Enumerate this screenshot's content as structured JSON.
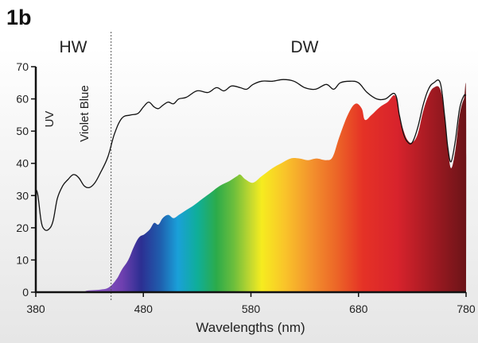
{
  "panel_label": "1b",
  "regions": [
    {
      "key": "hw",
      "label": "HW"
    },
    {
      "key": "dw",
      "label": "DW"
    }
  ],
  "bands": [
    {
      "key": "uv",
      "label": "UV"
    },
    {
      "key": "violet-blue",
      "label": "Violet Blue"
    }
  ],
  "chart_data": {
    "type": "area",
    "title": "",
    "xlabel": "Wavelengths (nm)",
    "ylabel": "",
    "xlim": [
      380,
      780
    ],
    "ylim": [
      0,
      70
    ],
    "x_ticks": [
      380,
      480,
      580,
      680,
      780
    ],
    "y_ticks": [
      0,
      10,
      20,
      30,
      40,
      50,
      60,
      70
    ],
    "divider_x": 450,
    "grid": false,
    "legend": "none",
    "series": [
      {
        "style": "spectral-fill",
        "points": [
          [
            380,
            0
          ],
          [
            420,
            0
          ],
          [
            428,
            0.5
          ],
          [
            440,
            0.8
          ],
          [
            448,
            1.5
          ],
          [
            455,
            4
          ],
          [
            460,
            7
          ],
          [
            466,
            10
          ],
          [
            471,
            14
          ],
          [
            476,
            17
          ],
          [
            481,
            18
          ],
          [
            486,
            19.5
          ],
          [
            490,
            21.5
          ],
          [
            494,
            21
          ],
          [
            498,
            23
          ],
          [
            503,
            24
          ],
          [
            508,
            23
          ],
          [
            513,
            24
          ],
          [
            520,
            25.5
          ],
          [
            527,
            27
          ],
          [
            535,
            29
          ],
          [
            543,
            31
          ],
          [
            551,
            33
          ],
          [
            560,
            34.5
          ],
          [
            567,
            36
          ],
          [
            570,
            36.5
          ],
          [
            575,
            35
          ],
          [
            582,
            34
          ],
          [
            590,
            36
          ],
          [
            600,
            38.5
          ],
          [
            608,
            40
          ],
          [
            617,
            41.5
          ],
          [
            625,
            41.5
          ],
          [
            633,
            41
          ],
          [
            641,
            41.5
          ],
          [
            650,
            41
          ],
          [
            656,
            42
          ],
          [
            662,
            48
          ],
          [
            670,
            55
          ],
          [
            677,
            58.5
          ],
          [
            683,
            57
          ],
          [
            686,
            53.5
          ],
          [
            692,
            55
          ],
          [
            700,
            57.5
          ],
          [
            707,
            59
          ],
          [
            714,
            61
          ],
          [
            718,
            55
          ],
          [
            722,
            50
          ],
          [
            726,
            47
          ],
          [
            730,
            46.5
          ],
          [
            735,
            49
          ],
          [
            740,
            56
          ],
          [
            745,
            61
          ],
          [
            750,
            63.5
          ],
          [
            756,
            63
          ],
          [
            760,
            55
          ],
          [
            763,
            45
          ],
          [
            766,
            38.5
          ],
          [
            770,
            44
          ],
          [
            774,
            55
          ],
          [
            778,
            60
          ],
          [
            780,
            60
          ],
          [
            780,
            0
          ]
        ]
      },
      {
        "style": "envelope-line",
        "color": "#111111",
        "points": [
          [
            380,
            32
          ],
          [
            382,
            30
          ],
          [
            385,
            22
          ],
          [
            388,
            19.5
          ],
          [
            392,
            19.5
          ],
          [
            396,
            22
          ],
          [
            400,
            29
          ],
          [
            405,
            33
          ],
          [
            410,
            35
          ],
          [
            415,
            36.5
          ],
          [
            420,
            35.5
          ],
          [
            425,
            33
          ],
          [
            430,
            32.5
          ],
          [
            435,
            34
          ],
          [
            440,
            37
          ],
          [
            447,
            42
          ],
          [
            453,
            49
          ],
          [
            460,
            54
          ],
          [
            468,
            55
          ],
          [
            475,
            55.5
          ],
          [
            480,
            57.5
          ],
          [
            485,
            59
          ],
          [
            490,
            57.5
          ],
          [
            494,
            57
          ],
          [
            498,
            58
          ],
          [
            503,
            59
          ],
          [
            508,
            58.5
          ],
          [
            513,
            60
          ],
          [
            520,
            60.5
          ],
          [
            530,
            62.5
          ],
          [
            540,
            62
          ],
          [
            548,
            63.5
          ],
          [
            555,
            62.5
          ],
          [
            562,
            64
          ],
          [
            570,
            63.5
          ],
          [
            576,
            63
          ],
          [
            582,
            64.5
          ],
          [
            590,
            65.5
          ],
          [
            600,
            65.5
          ],
          [
            610,
            66
          ],
          [
            620,
            65.5
          ],
          [
            630,
            63.5
          ],
          [
            640,
            63
          ],
          [
            650,
            64.5
          ],
          [
            657,
            63
          ],
          [
            663,
            65
          ],
          [
            672,
            65.5
          ],
          [
            680,
            65
          ],
          [
            688,
            62
          ],
          [
            697,
            60
          ],
          [
            705,
            60
          ],
          [
            714,
            61.5
          ],
          [
            718,
            55
          ],
          [
            722,
            49
          ],
          [
            726,
            46.5
          ],
          [
            730,
            46.5
          ],
          [
            735,
            51
          ],
          [
            740,
            58
          ],
          [
            745,
            63
          ],
          [
            750,
            65
          ],
          [
            756,
            65
          ],
          [
            760,
            55
          ],
          [
            763,
            45
          ],
          [
            766,
            40.5
          ],
          [
            770,
            47
          ],
          [
            774,
            57
          ],
          [
            778,
            61
          ],
          [
            780,
            61
          ]
        ]
      }
    ]
  }
}
